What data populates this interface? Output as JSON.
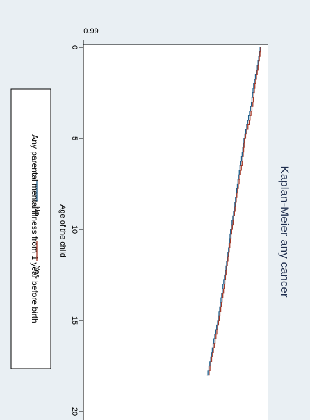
{
  "chart_data": {
    "type": "line",
    "title": "Kaplan-Meier any cancer",
    "xlabel": "Age of the child",
    "ylabel": "",
    "xlim": [
      0,
      20
    ],
    "ylim": [
      0.99,
      1.0
    ],
    "x_ticks": [
      0,
      5,
      10,
      15,
      20
    ],
    "x_tick_labels": [
      "0",
      "5",
      "10",
      "15",
      "20"
    ],
    "y_ticks": [
      0.99
    ],
    "y_tick_labels": [
      "0.99"
    ],
    "grid": false,
    "legend": {
      "title": "Any parental mental illness from 1 year before birth",
      "position": "left"
    },
    "series": [
      {
        "name": "No",
        "color": "#1f5f8b",
        "x": [
          0,
          1,
          2,
          3,
          4,
          5,
          6,
          7,
          8,
          9,
          10,
          11,
          12,
          13,
          14,
          15,
          16,
          17,
          18
        ],
        "y": [
          0.99952,
          0.99937,
          0.99917,
          0.99905,
          0.99885,
          0.99865,
          0.99852,
          0.99836,
          0.99823,
          0.99809,
          0.99793,
          0.99782,
          0.99768,
          0.99752,
          0.99738,
          0.99723,
          0.99703,
          0.99686,
          0.99666
        ]
      },
      {
        "name": "Yes",
        "color": "#a33a2a",
        "x": [
          0,
          1,
          2,
          3,
          4,
          5,
          6,
          7,
          8,
          9,
          10,
          11,
          12,
          13,
          14,
          15,
          16,
          17,
          18
        ],
        "y": [
          0.99955,
          0.99941,
          0.99924,
          0.99913,
          0.99893,
          0.99868,
          0.99859,
          0.99843,
          0.99827,
          0.99814,
          0.99799,
          0.99786,
          0.99772,
          0.99759,
          0.99744,
          0.99728,
          0.9971,
          0.99691,
          0.99673
        ]
      }
    ]
  }
}
